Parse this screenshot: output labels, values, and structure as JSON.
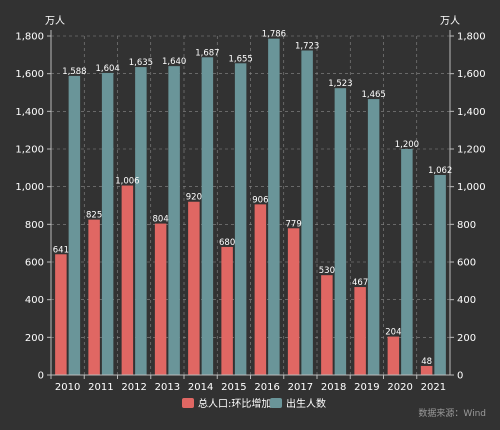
{
  "chart_data": {
    "type": "bar",
    "y_unit_left": "万人",
    "y_unit_right": "万人",
    "categories": [
      "2010",
      "2011",
      "2012",
      "2013",
      "2014",
      "2015",
      "2016",
      "2017",
      "2018",
      "2019",
      "2020",
      "2021"
    ],
    "series": [
      {
        "name": "总人口:环比增加",
        "color": "#e06763",
        "values": [
          641,
          825,
          1006,
          804,
          920,
          680,
          906,
          779,
          530,
          467,
          204,
          48
        ]
      },
      {
        "name": "出生人数",
        "color": "#6a9599",
        "values": [
          1588,
          1604,
          1635,
          1640,
          1687,
          1655,
          1786,
          1723,
          1523,
          1465,
          1200,
          1062
        ]
      }
    ],
    "ylim": [
      0,
      1800
    ],
    "yticks": [
      0,
      200,
      400,
      600,
      800,
      1000,
      1200,
      1400,
      1600,
      1800
    ],
    "ytick_labels": [
      "0",
      "200",
      "400",
      "600",
      "800",
      "1,000",
      "1,200",
      "1,400",
      "1,600",
      "1,800"
    ],
    "grid": true,
    "legend_position": "bottom-center"
  },
  "source_text": "数据来源：Wind"
}
